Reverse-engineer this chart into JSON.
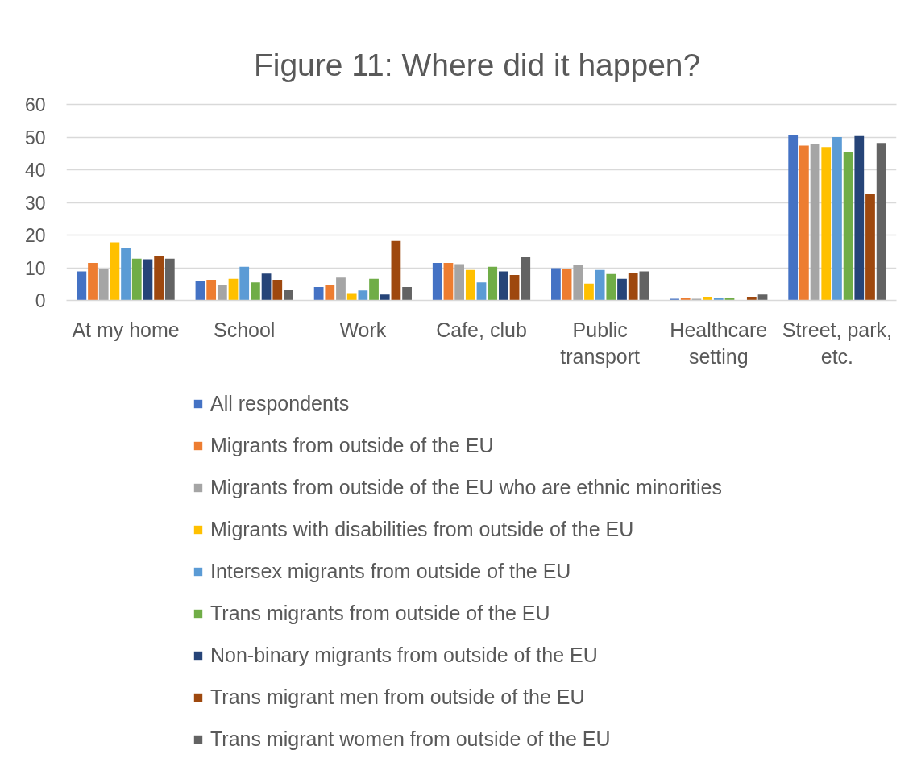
{
  "chart_data": {
    "type": "bar",
    "title": "Figure 11:  Where did it happen?",
    "categories": [
      "At my home",
      "School",
      "Work",
      "Cafe, club",
      "Public transport",
      "Healthcare setting",
      "Street, park, etc."
    ],
    "series": [
      {
        "name": "All respondents",
        "color": "#4472c4",
        "values": [
          8.9,
          5.9,
          4.1,
          11.5,
          9.9,
          0.5,
          50.7
        ]
      },
      {
        "name": "Migrants from outside of the EU",
        "color": "#ed7d31",
        "values": [
          11.5,
          6.3,
          4.8,
          11.5,
          9.6,
          0.6,
          47.4
        ]
      },
      {
        "name": "Migrants from outside of the EU who are ethnic minorities",
        "color": "#a5a5a5",
        "values": [
          9.7,
          4.8,
          7.0,
          11.1,
          10.8,
          0.5,
          47.8
        ]
      },
      {
        "name": "Migrants with disabilities from outside of the EU",
        "color": "#ffc000",
        "values": [
          17.8,
          6.6,
          2.2,
          9.3,
          5.1,
          1.1,
          47.0
        ]
      },
      {
        "name": "Intersex migrants from outside of the EU",
        "color": "#5b9bd5",
        "values": [
          16.0,
          10.3,
          3.0,
          5.5,
          9.3,
          0.6,
          50.0
        ]
      },
      {
        "name": "Trans migrants from outside of the EU",
        "color": "#70ad47",
        "values": [
          12.8,
          5.5,
          6.6,
          10.3,
          8.1,
          0.8,
          45.3
        ]
      },
      {
        "name": "Non-binary migrants from outside of the EU",
        "color": "#264478",
        "values": [
          12.6,
          8.2,
          1.8,
          8.9,
          6.6,
          0,
          50.3
        ]
      },
      {
        "name": "Trans migrant men from outside of the EU",
        "color": "#9e480e",
        "values": [
          13.7,
          6.3,
          18.2,
          7.8,
          8.5,
          1.1,
          32.6
        ]
      },
      {
        "name": "Trans migrant women from outside of the EU",
        "color": "#636363",
        "values": [
          12.8,
          3.3,
          4.1,
          13.2,
          8.9,
          1.8,
          48.2
        ]
      }
    ],
    "ylim": [
      0,
      60
    ],
    "yticks": [
      0,
      10,
      20,
      30,
      40,
      50,
      60
    ],
    "grid": "y",
    "legend": "bottom"
  }
}
